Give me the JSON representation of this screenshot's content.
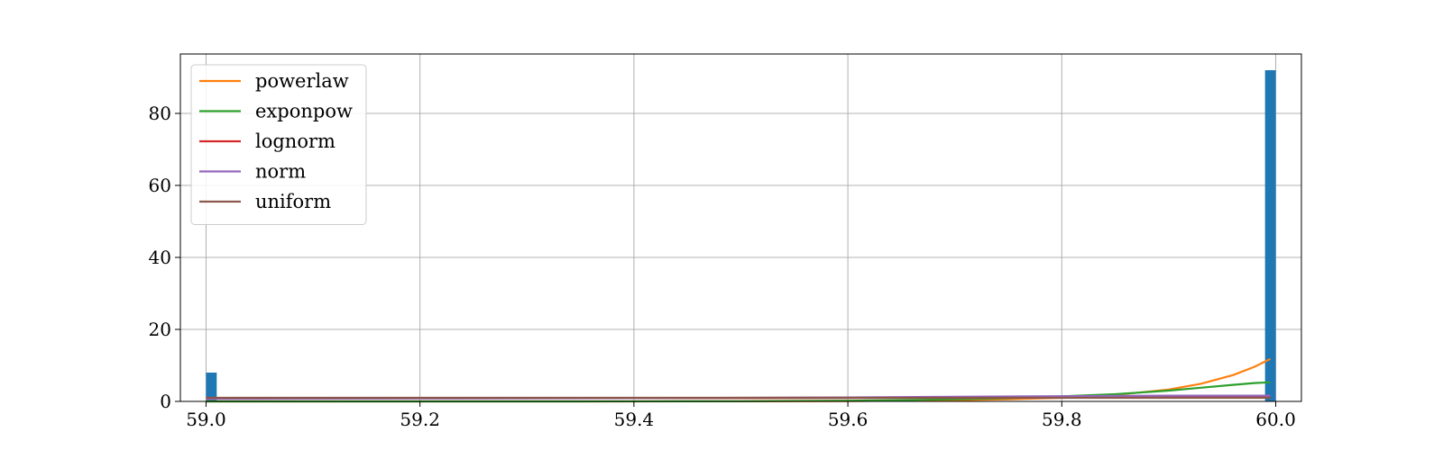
{
  "chart_data": {
    "type": "bar",
    "title": "",
    "xlabel": "",
    "ylabel": "",
    "xlim": [
      58.976,
      60.024
    ],
    "ylim": [
      0,
      96.5
    ],
    "grid": true,
    "legend_position": "top-left",
    "xticks": [
      {
        "value": 59.0,
        "label": "59.0"
      },
      {
        "value": 59.2,
        "label": "59.2"
      },
      {
        "value": 59.4,
        "label": "59.4"
      },
      {
        "value": 59.6,
        "label": "59.6"
      },
      {
        "value": 59.8,
        "label": "59.8"
      },
      {
        "value": 60.0,
        "label": "60.0"
      }
    ],
    "yticks": [
      {
        "value": 0,
        "label": "0"
      },
      {
        "value": 20,
        "label": "20"
      },
      {
        "value": 40,
        "label": "40"
      },
      {
        "value": 60,
        "label": "60"
      },
      {
        "value": 80,
        "label": "80"
      }
    ],
    "histogram": {
      "color": "#1f77b4",
      "bin_width": 0.01,
      "bins": [
        {
          "x": 59.0,
          "height": 8
        },
        {
          "x": 59.99,
          "height": 92
        }
      ]
    },
    "series": [
      {
        "name": "powerlaw",
        "color": "#ff7f0e",
        "x": [
          59.0,
          59.1,
          59.2,
          59.3,
          59.4,
          59.5,
          59.6,
          59.65,
          59.7,
          59.75,
          59.8,
          59.85,
          59.9,
          59.93,
          59.96,
          59.98,
          59.995
        ],
        "y": [
          0.0,
          0.0,
          0.0,
          0.0,
          0.0,
          0.02,
          0.1,
          0.2,
          0.35,
          0.6,
          1.0,
          1.8,
          3.3,
          4.9,
          7.3,
          9.6,
          11.8
        ]
      },
      {
        "name": "exponpow",
        "color": "#2ca02c",
        "x": [
          59.0,
          59.1,
          59.2,
          59.3,
          59.4,
          59.5,
          59.6,
          59.65,
          59.7,
          59.75,
          59.8,
          59.85,
          59.9,
          59.93,
          59.96,
          59.98,
          59.995
        ],
        "y": [
          0.0,
          0.0,
          0.0,
          0.0,
          0.02,
          0.05,
          0.2,
          0.35,
          0.6,
          0.9,
          1.4,
          2.0,
          3.0,
          3.8,
          4.6,
          5.1,
          5.3
        ]
      },
      {
        "name": "lognorm",
        "color": "#d62728",
        "x": [
          59.0,
          59.2,
          59.4,
          59.6,
          59.7,
          59.8,
          59.9,
          59.995
        ],
        "y": [
          0.9,
          0.9,
          0.9,
          0.95,
          1.0,
          1.05,
          1.1,
          1.1
        ]
      },
      {
        "name": "norm",
        "color": "#9467bd",
        "x": [
          59.0,
          59.2,
          59.4,
          59.6,
          59.7,
          59.8,
          59.9,
          59.995
        ],
        "y": [
          0.7,
          0.8,
          0.9,
          1.1,
          1.3,
          1.45,
          1.6,
          1.6
        ]
      },
      {
        "name": "uniform",
        "color": "#8c564b",
        "x": [
          59.0,
          59.995
        ],
        "y": [
          1.0,
          1.0
        ]
      }
    ]
  }
}
